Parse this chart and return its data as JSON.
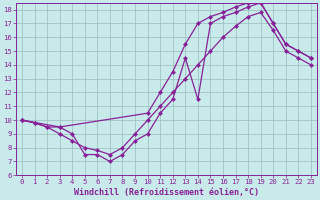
{
  "xlabel": "Windchill (Refroidissement éolien,°C)",
  "bg_color": "#c8eaea",
  "line_color": "#882299",
  "grid_color": "#99bbbb",
  "xlim": [
    -0.5,
    23.5
  ],
  "ylim": [
    6,
    18.5
  ],
  "xticks": [
    0,
    1,
    2,
    3,
    4,
    5,
    6,
    7,
    8,
    9,
    10,
    11,
    12,
    13,
    14,
    15,
    16,
    17,
    18,
    19,
    20,
    21,
    22,
    23
  ],
  "yticks": [
    6,
    7,
    8,
    9,
    10,
    11,
    12,
    13,
    14,
    15,
    16,
    17,
    18
  ],
  "line1_x": [
    0,
    1,
    2,
    3,
    4,
    5,
    6,
    7,
    8,
    9,
    10,
    11,
    12,
    13,
    14,
    15,
    16,
    17,
    18,
    19,
    20,
    21,
    22,
    23
  ],
  "line1_y": [
    10.0,
    9.8,
    9.5,
    9.5,
    9.0,
    7.5,
    7.5,
    7.0,
    7.5,
    8.5,
    9.0,
    10.5,
    11.5,
    14.5,
    11.5,
    17.0,
    17.5,
    17.8,
    18.2,
    18.5,
    17.0,
    15.5,
    15.0,
    14.5
  ],
  "line2_x": [
    0,
    1,
    2,
    3,
    4,
    5,
    6,
    7,
    8,
    9,
    10,
    11,
    12,
    13,
    14,
    15,
    16,
    17,
    18,
    19,
    20,
    21,
    22,
    23
  ],
  "line2_y": [
    10.0,
    9.8,
    9.5,
    9.0,
    8.5,
    8.0,
    7.8,
    7.5,
    8.0,
    9.0,
    10.0,
    11.0,
    12.0,
    13.0,
    14.0,
    15.0,
    16.0,
    16.8,
    17.5,
    17.8,
    16.5,
    15.0,
    14.5,
    14.0
  ],
  "line3_x": [
    0,
    3,
    10,
    11,
    12,
    13,
    14,
    15,
    16,
    17,
    18,
    19,
    20,
    21,
    22,
    23
  ],
  "line3_y": [
    10.0,
    9.5,
    10.5,
    12.0,
    13.5,
    15.5,
    17.0,
    17.5,
    17.8,
    18.2,
    18.5,
    18.5,
    17.0,
    15.5,
    15.0,
    14.5
  ],
  "marker": "D",
  "markersize": 2.0,
  "linewidth": 0.9,
  "tick_fontsize": 5.2,
  "label_fontsize": 6.0
}
